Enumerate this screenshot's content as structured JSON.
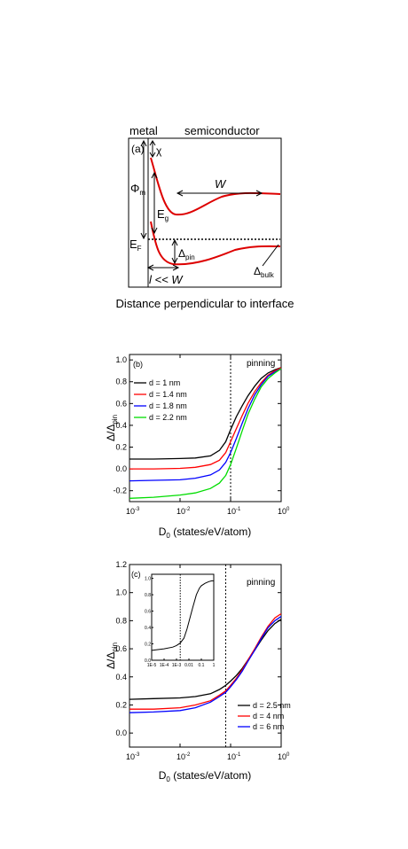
{
  "panel_a": {
    "header_metal": "metal",
    "header_semiconductor": "semiconductor",
    "label_a": "(a)",
    "label_chi": "χ",
    "label_phi": "Φ",
    "label_phi_sub": "m",
    "label_W": "W",
    "label_Eg": "E",
    "label_Eg_sub": "g",
    "label_EF": "E",
    "label_EF_sub": "F",
    "label_delta_pin": "Δ",
    "label_delta_pin_sub": "pin",
    "label_delta_bulk": "Δ",
    "label_delta_bulk_sub": "bulk",
    "label_l": "l << W",
    "xlabel": "Distance perpendicular to interface"
  },
  "chart_data": [
    {
      "type": "line",
      "panel_label": "(b)",
      "annotation": "pinning",
      "ylabel": "Δ/Δ",
      "ylabel_sub": "pin",
      "xlabel": "D",
      "xlabel_sub": "0",
      "xlabel_rest": " (states/eV/atom)",
      "xscale": "log",
      "xlim": [
        0.001,
        1
      ],
      "ylim": [
        -0.3,
        1.05
      ],
      "x_ticks": [
        {
          "v": 0.001,
          "m": "-3"
        },
        {
          "v": 0.01,
          "m": "-2"
        },
        {
          "v": 0.1,
          "m": "-1"
        },
        {
          "v": 1,
          "m": "0"
        }
      ],
      "y_ticks": [
        "-0.2",
        "0.0",
        "0.2",
        "0.4",
        "0.6",
        "0.8",
        "1.0"
      ],
      "vline_x": 0.1,
      "legend_position": "top-left",
      "x": [
        0.001,
        0.003,
        0.01,
        0.02,
        0.04,
        0.06,
        0.08,
        0.1,
        0.13,
        0.17,
        0.22,
        0.3,
        0.4,
        0.55,
        0.75,
        1.0
      ],
      "series": [
        {
          "name": "d = 1 nm",
          "color": "#000000",
          "values": [
            0.09,
            0.09,
            0.095,
            0.1,
            0.12,
            0.17,
            0.25,
            0.36,
            0.48,
            0.58,
            0.67,
            0.76,
            0.83,
            0.88,
            0.91,
            0.93
          ]
        },
        {
          "name": "d = 1.4 nm",
          "color": "#ff0000",
          "values": [
            0.0,
            0.0,
            0.005,
            0.015,
            0.04,
            0.08,
            0.15,
            0.25,
            0.37,
            0.49,
            0.6,
            0.71,
            0.79,
            0.86,
            0.9,
            0.93
          ]
        },
        {
          "name": "d = 1.8 nm",
          "color": "#0000ff",
          "values": [
            -0.11,
            -0.105,
            -0.1,
            -0.085,
            -0.055,
            -0.01,
            0.06,
            0.15,
            0.28,
            0.42,
            0.55,
            0.68,
            0.77,
            0.85,
            0.89,
            0.92
          ]
        },
        {
          "name": "d = 2.2 nm",
          "color": "#00dd00",
          "values": [
            -0.27,
            -0.26,
            -0.24,
            -0.22,
            -0.18,
            -0.13,
            -0.06,
            0.04,
            0.19,
            0.35,
            0.5,
            0.64,
            0.75,
            0.83,
            0.88,
            0.92
          ]
        }
      ]
    },
    {
      "type": "line",
      "panel_label": "(c)",
      "annotation": "pinning",
      "ylabel": "Δ/Δ",
      "ylabel_sub": "pin",
      "xlabel": "D",
      "xlabel_sub": "0",
      "xlabel_rest": " (states/eV/atom)",
      "xscale": "log",
      "xlim": [
        0.001,
        1
      ],
      "ylim": [
        -0.1,
        1.2
      ],
      "x_ticks": [
        {
          "v": 0.001,
          "m": "-3"
        },
        {
          "v": 0.01,
          "m": "-2"
        },
        {
          "v": 0.1,
          "m": "-1"
        },
        {
          "v": 1,
          "m": "0"
        }
      ],
      "y_ticks": [
        "0.0",
        "0.2",
        "0.4",
        "0.6",
        "0.8",
        "1.0",
        "1.2"
      ],
      "vline_x": 0.08,
      "legend_position": "bottom-right",
      "x": [
        0.001,
        0.003,
        0.01,
        0.02,
        0.04,
        0.06,
        0.08,
        0.1,
        0.13,
        0.17,
        0.22,
        0.3,
        0.4,
        0.55,
        0.75,
        1.0
      ],
      "series": [
        {
          "name": "d = 2.5 nm",
          "color": "#000000",
          "values": [
            0.24,
            0.245,
            0.25,
            0.26,
            0.28,
            0.31,
            0.34,
            0.37,
            0.41,
            0.46,
            0.52,
            0.59,
            0.66,
            0.73,
            0.78,
            0.81
          ]
        },
        {
          "name": "d = 4 nm",
          "color": "#ff0000",
          "values": [
            0.17,
            0.17,
            0.18,
            0.2,
            0.23,
            0.27,
            0.3,
            0.34,
            0.39,
            0.45,
            0.52,
            0.6,
            0.68,
            0.76,
            0.82,
            0.85
          ]
        },
        {
          "name": "d = 6 nm",
          "color": "#0000ff",
          "values": [
            0.145,
            0.15,
            0.16,
            0.18,
            0.22,
            0.26,
            0.29,
            0.33,
            0.38,
            0.44,
            0.51,
            0.59,
            0.67,
            0.75,
            0.8,
            0.83
          ]
        }
      ],
      "inset": {
        "xscale": "log",
        "xlim": [
          1e-05,
          1
        ],
        "ylim": [
          0.0,
          1.05
        ],
        "x_tick_labels": [
          "1E-5",
          "1E-4",
          "1E-3",
          "0.01",
          "0.1",
          "1"
        ],
        "y_tick_labels": [
          "0.0",
          "0.2",
          "0.4",
          "0.6",
          "0.8",
          "1.0"
        ],
        "vline_x": 0.002,
        "x": [
          1e-05,
          0.0001,
          0.0005,
          0.001,
          0.002,
          0.004,
          0.007,
          0.01,
          0.02,
          0.04,
          0.07,
          0.1,
          0.2,
          0.4,
          0.7,
          1.0
        ],
        "values": [
          0.12,
          0.14,
          0.16,
          0.18,
          0.21,
          0.27,
          0.38,
          0.47,
          0.64,
          0.8,
          0.88,
          0.91,
          0.94,
          0.96,
          0.97,
          0.97
        ]
      }
    }
  ]
}
